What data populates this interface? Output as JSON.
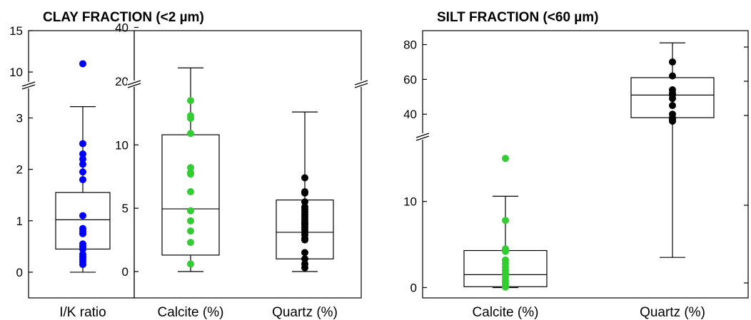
{
  "panel_titles": {
    "clay": "CLAY FRACTION (<2 µm)",
    "silt": "SILT FRACTION (<60 µm)"
  },
  "chart_data": [
    {
      "type": "box",
      "panel": "clay",
      "title": "CLAY FRACTION (<2 µm)",
      "category": "I/K ratio",
      "axis": {
        "lower_range": [
          -0.5,
          3.7
        ],
        "lower_ticks": [
          "0",
          "1",
          "2",
          "3"
        ],
        "upper_range": [
          8.8,
          15
        ],
        "upper_ticks": [
          "10",
          "15"
        ],
        "broken": true
      },
      "box": {
        "min": 0.0,
        "q1": 0.45,
        "median": 1.02,
        "q3": 1.55,
        "max": 3.22
      },
      "points": [
        11.0,
        2.5,
        2.3,
        2.2,
        2.1,
        1.95,
        1.8,
        1.1,
        0.85,
        0.8,
        0.75,
        0.55,
        0.5,
        0.45,
        0.35,
        0.3,
        0.25,
        0.2,
        0.15
      ],
      "point_color": "#0000ff"
    },
    {
      "type": "box",
      "panel": "clay",
      "categories": [
        "Calcite (%)",
        "Quartz (%)"
      ],
      "axis": {
        "lower_range": [
          -1.8,
          14.8
        ],
        "lower_ticks": [
          "0",
          "5",
          "10"
        ],
        "upper_range": [
          19,
          47
        ],
        "upper_ticks": [
          "20",
          "40"
        ],
        "broken": true
      },
      "series": [
        {
          "category": "Calcite (%)",
          "box": {
            "min": 0.0,
            "q1": 1.3,
            "median": 4.95,
            "q3": 10.8,
            "max": 25
          },
          "points": [
            13.5,
            12.3,
            12.1,
            10.9,
            8.2,
            7.8,
            7.7,
            6.3,
            4.8,
            4.0,
            3.2,
            2.3,
            0.6
          ],
          "point_color": "#33cc33"
        },
        {
          "category": "Quartz (%)",
          "box": {
            "min": 0.0,
            "q1": 1.0,
            "median": 3.1,
            "q3": 5.65,
            "max": 12.6
          },
          "points": [
            7.4,
            6.3,
            6.2,
            5.5,
            5.1,
            4.9,
            4.7,
            4.5,
            4.3,
            4.1,
            3.9,
            3.8,
            3.7,
            3.5,
            3.3,
            3.1,
            2.9,
            2.6,
            2.5,
            1.5,
            1.0,
            0.6,
            0.3
          ],
          "point_color": "#000000"
        }
      ]
    },
    {
      "type": "box",
      "panel": "silt",
      "title": "SILT FRACTION (<60 µm)",
      "categories": [
        "Calcite (%)",
        "Quartz (%)"
      ],
      "axis": {
        "lower_range": [
          -1.2,
          17.5
        ],
        "lower_ticks": [
          "0",
          "10"
        ],
        "upper_range": [
          27,
          88
        ],
        "upper_ticks": [
          "40",
          "60",
          "80"
        ],
        "broken": true
      },
      "series": [
        {
          "category": "Calcite (%)",
          "box": {
            "min": 0.0,
            "q1": 0.1,
            "median": 1.5,
            "q3": 4.3,
            "max": 10.6
          },
          "points": [
            15.0,
            7.8,
            4.5,
            4.2,
            3.2,
            2.8,
            2.4,
            2.0,
            1.6,
            1.2,
            0.8,
            0.5,
            0.2,
            0.05
          ],
          "point_color": "#33cc33"
        },
        {
          "category": "Quartz (%)",
          "box": {
            "min": 3.5,
            "q1": 38,
            "median": 51,
            "q3": 61,
            "max": 81
          },
          "points": [
            70,
            62,
            54,
            52,
            51,
            49,
            45,
            40,
            38,
            37,
            36
          ],
          "point_color": "#000000"
        }
      ]
    }
  ]
}
